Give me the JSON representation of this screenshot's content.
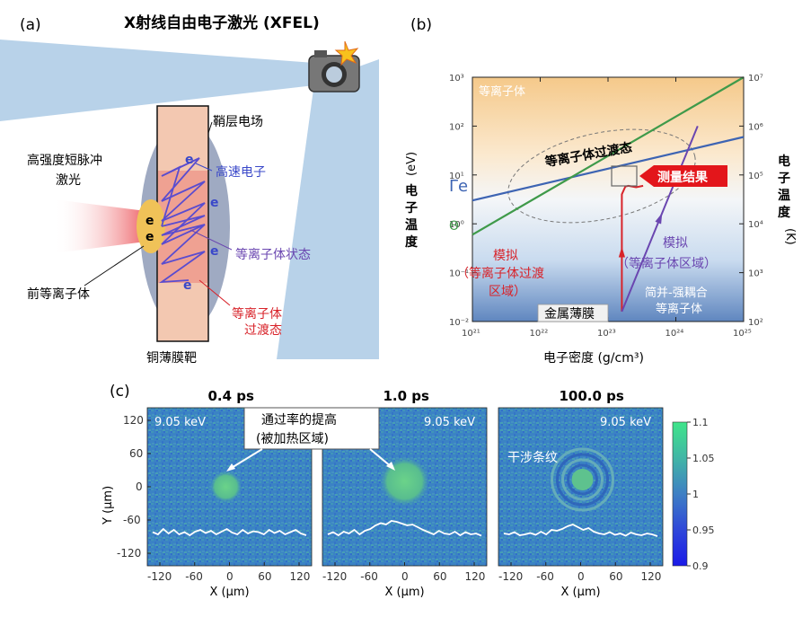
{
  "panel_a": {
    "tag": "(a)",
    "title": "X射线自由电子激光 (XFEL)",
    "label_sheath": "鞘层电场",
    "label_fast_electron": "高速电子",
    "label_laser_line1": "高强度短脉冲",
    "label_laser_line2": "激光",
    "label_plasma_state": "等离子体状态",
    "label_preplasma": "前等离子体",
    "label_transition_line1": "等离子体",
    "label_transition_line2": "过渡态",
    "label_target": "铜薄膜靶",
    "electron_symbol": "e",
    "icon": "camera-icon"
  },
  "panel_b": {
    "tag": "(b)",
    "xlabel": "电子密度 (g/cm³)",
    "ylabel_left": [
      "电",
      "子",
      "温",
      "度",
      "(eV)"
    ],
    "ylabel_right": [
      "电",
      "子",
      "温",
      "度",
      "(K)"
    ],
    "label_plasma": "等离子体",
    "label_transition": "等离子体过渡态",
    "label_measure": "测量结果",
    "label_gamma": "Γe",
    "label_theta": "Θ",
    "label_sim_left_line1": "模拟",
    "label_sim_left_line2": "（等离子体过渡",
    "label_sim_left_line3": "区域）",
    "label_sim_right_line1": "模拟",
    "label_sim_right_line2": "（等离子体区域）",
    "label_degenerate_line1": "简并-强耦合",
    "label_degenerate_line2": "等离子体",
    "label_metal": "金属薄膜",
    "colors": {
      "gamma": "#3d64b3",
      "theta": "#3f9a4a",
      "sim_left": "#d8232a",
      "sim_right": "#6a46b0"
    }
  },
  "chart_data": {
    "type": "line",
    "x_scale": "log",
    "y_scale": "log",
    "xlim": [
      1e+21,
      1e+25
    ],
    "ylim": [
      0.01,
      1000
    ],
    "x_ticks": [
      "10²¹",
      "10²²",
      "10²³",
      "10²⁴",
      "10²⁵"
    ],
    "y_ticks_left": [
      "10⁻²",
      "10⁻¹",
      "10⁰",
      "10¹",
      "10²",
      "10³"
    ],
    "y_ticks_right": [
      "10²",
      "10³",
      "10⁴",
      "10⁵",
      "10⁶",
      "10⁷"
    ],
    "series": [
      {
        "name": "Γe",
        "x": [
          1e+21,
          1e+25
        ],
        "y": [
          3,
          60
        ]
      },
      {
        "name": "Θ",
        "x": [
          1e+21,
          1e+25
        ],
        "y": [
          0.6,
          1500
        ]
      },
      {
        "x": [
          1.6e+23,
          1.6e+23,
          1.8e+23,
          2e+23,
          2.6e+23,
          3.3e+23
        ],
        "y": [
          0.016,
          4,
          5.8,
          6,
          5.6,
          6
        ]
      },
      {
        "x": [
          1.6e+23,
          2.1e+24
        ],
        "y": [
          0.016,
          100.0
        ]
      }
    ]
  },
  "panel_c": {
    "tag": "(c)",
    "ylabel": "Y (μm)",
    "xlabel": "X (μm)",
    "annotation_line1": "通过率的提高",
    "annotation_line2": "(被加热区域)",
    "annotation_fringe": "干涉条纹",
    "x_ticks": [
      "-120",
      "-60",
      "0",
      "60",
      "120"
    ],
    "y_ticks": [
      "120",
      "60",
      "0",
      "-60",
      "-120"
    ],
    "images": [
      {
        "time": "0.4 ps",
        "energy": "9.05 keV"
      },
      {
        "time": "1.0 ps",
        "energy": "9.05 keV"
      },
      {
        "time": "100.0 ps",
        "energy": "9.05 keV"
      }
    ],
    "colorbar_ticks": [
      "1.1",
      "1.05",
      "1",
      "0.95",
      "0.9"
    ]
  }
}
